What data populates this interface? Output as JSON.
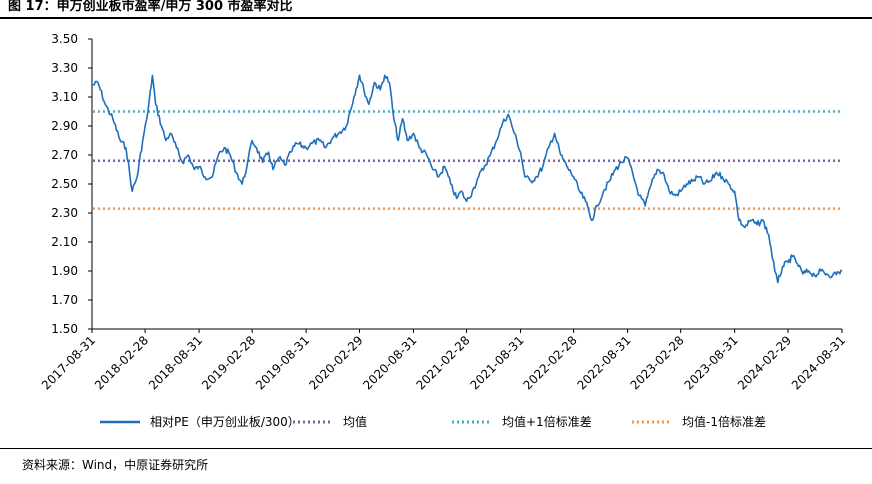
{
  "title": "图 17：申万创业板市盈率/申万 300 市盈率对比",
  "source": "资料来源：Wind，中原证券研究所",
  "chart_data": {
    "type": "line",
    "title": "图 17：申万创业板市盈率/申万 300 市盈率对比",
    "xlabel": "",
    "ylabel": "",
    "ylim": [
      1.5,
      3.5
    ],
    "y_ticks": [
      "1.50",
      "1.70",
      "1.90",
      "2.10",
      "2.30",
      "2.50",
      "2.70",
      "2.90",
      "3.10",
      "3.30",
      "3.50"
    ],
    "x_ticks": [
      "2017-08-31",
      "2018-02-28",
      "2018-08-31",
      "2019-02-28",
      "2019-08-31",
      "2020-02-29",
      "2020-08-31",
      "2021-02-28",
      "2021-08-31",
      "2022-02-28",
      "2022-08-31",
      "2023-02-28",
      "2023-08-31",
      "2024-02-29",
      "2024-08-31"
    ],
    "grid": false,
    "legend_position": "bottom",
    "series": [
      {
        "name": "相对PE（申万创业板/300）",
        "style": "solid",
        "color": "#1f6fba",
        "points": [
          [
            "2017-08-31",
            3.18
          ],
          [
            "2017-09-20",
            3.2
          ],
          [
            "2017-10-15",
            3.05
          ],
          [
            "2017-11-10",
            2.95
          ],
          [
            "2017-12-05",
            2.8
          ],
          [
            "2017-12-25",
            2.75
          ],
          [
            "2018-01-15",
            2.45
          ],
          [
            "2018-02-01",
            2.55
          ],
          [
            "2018-02-20",
            2.8
          ],
          [
            "2018-03-10",
            3.0
          ],
          [
            "2018-03-25",
            3.25
          ],
          [
            "2018-04-05",
            3.05
          ],
          [
            "2018-04-25",
            2.9
          ],
          [
            "2018-05-10",
            2.8
          ],
          [
            "2018-05-25",
            2.85
          ],
          [
            "2018-06-15",
            2.75
          ],
          [
            "2018-07-05",
            2.65
          ],
          [
            "2018-07-25",
            2.7
          ],
          [
            "2018-08-15",
            2.6
          ],
          [
            "2018-08-31",
            2.62
          ],
          [
            "2018-09-20",
            2.55
          ],
          [
            "2018-10-15",
            2.55
          ],
          [
            "2018-11-05",
            2.7
          ],
          [
            "2018-11-25",
            2.75
          ],
          [
            "2018-12-15",
            2.7
          ],
          [
            "2019-01-05",
            2.58
          ],
          [
            "2019-01-25",
            2.5
          ],
          [
            "2019-02-10",
            2.62
          ],
          [
            "2019-02-28",
            2.8
          ],
          [
            "2019-03-15",
            2.75
          ],
          [
            "2019-04-05",
            2.65
          ],
          [
            "2019-04-25",
            2.72
          ],
          [
            "2019-05-10",
            2.6
          ],
          [
            "2019-05-30",
            2.68
          ],
          [
            "2019-06-20",
            2.63
          ],
          [
            "2019-07-10",
            2.72
          ],
          [
            "2019-07-30",
            2.78
          ],
          [
            "2019-08-31",
            2.75
          ],
          [
            "2019-09-20",
            2.78
          ],
          [
            "2019-10-15",
            2.8
          ],
          [
            "2019-11-05",
            2.75
          ],
          [
            "2019-11-30",
            2.82
          ],
          [
            "2019-12-20",
            2.85
          ],
          [
            "2020-01-15",
            2.9
          ],
          [
            "2020-02-10",
            3.1
          ],
          [
            "2020-02-29",
            3.25
          ],
          [
            "2020-03-15",
            3.15
          ],
          [
            "2020-04-01",
            3.05
          ],
          [
            "2020-04-20",
            3.2
          ],
          [
            "2020-05-10",
            3.15
          ],
          [
            "2020-05-25",
            3.25
          ],
          [
            "2020-06-10",
            3.2
          ],
          [
            "2020-06-25",
            2.95
          ],
          [
            "2020-07-10",
            2.8
          ],
          [
            "2020-07-25",
            2.95
          ],
          [
            "2020-08-10",
            2.8
          ],
          [
            "2020-08-31",
            2.85
          ],
          [
            "2020-09-20",
            2.75
          ],
          [
            "2020-10-15",
            2.7
          ],
          [
            "2020-11-05",
            2.6
          ],
          [
            "2020-11-25",
            2.55
          ],
          [
            "2020-12-15",
            2.62
          ],
          [
            "2021-01-05",
            2.5
          ],
          [
            "2021-01-25",
            2.4
          ],
          [
            "2021-02-10",
            2.45
          ],
          [
            "2021-02-28",
            2.38
          ],
          [
            "2021-03-20",
            2.45
          ],
          [
            "2021-04-10",
            2.55
          ],
          [
            "2021-04-30",
            2.62
          ],
          [
            "2021-05-20",
            2.7
          ],
          [
            "2021-06-10",
            2.8
          ],
          [
            "2021-07-01",
            2.92
          ],
          [
            "2021-07-20",
            2.98
          ],
          [
            "2021-08-10",
            2.85
          ],
          [
            "2021-08-31",
            2.72
          ],
          [
            "2021-09-15",
            2.55
          ],
          [
            "2021-10-05",
            2.52
          ],
          [
            "2021-10-25",
            2.55
          ],
          [
            "2021-11-15",
            2.62
          ],
          [
            "2021-12-05",
            2.75
          ],
          [
            "2021-12-25",
            2.85
          ],
          [
            "2022-01-15",
            2.7
          ],
          [
            "2022-02-05",
            2.62
          ],
          [
            "2022-02-28",
            2.55
          ],
          [
            "2022-03-20",
            2.45
          ],
          [
            "2022-04-10",
            2.38
          ],
          [
            "2022-04-30",
            2.25
          ],
          [
            "2022-05-20",
            2.35
          ],
          [
            "2022-06-10",
            2.45
          ],
          [
            "2022-06-30",
            2.52
          ],
          [
            "2022-07-20",
            2.6
          ],
          [
            "2022-08-10",
            2.65
          ],
          [
            "2022-08-31",
            2.68
          ],
          [
            "2022-09-20",
            2.55
          ],
          [
            "2022-10-10",
            2.42
          ],
          [
            "2022-10-30",
            2.35
          ],
          [
            "2022-11-20",
            2.5
          ],
          [
            "2022-12-10",
            2.6
          ],
          [
            "2022-12-30",
            2.58
          ],
          [
            "2023-01-20",
            2.45
          ],
          [
            "2023-02-10",
            2.42
          ],
          [
            "2023-02-28",
            2.45
          ],
          [
            "2023-03-20",
            2.5
          ],
          [
            "2023-04-10",
            2.52
          ],
          [
            "2023-04-30",
            2.55
          ],
          [
            "2023-05-20",
            2.5
          ],
          [
            "2023-06-10",
            2.52
          ],
          [
            "2023-06-30",
            2.58
          ],
          [
            "2023-07-20",
            2.55
          ],
          [
            "2023-08-10",
            2.5
          ],
          [
            "2023-08-31",
            2.45
          ],
          [
            "2023-09-15",
            2.25
          ],
          [
            "2023-10-05",
            2.2
          ],
          [
            "2023-10-25",
            2.25
          ],
          [
            "2023-11-15",
            2.22
          ],
          [
            "2023-12-05",
            2.25
          ],
          [
            "2023-12-25",
            2.15
          ],
          [
            "2024-01-15",
            1.9
          ],
          [
            "2024-01-25",
            1.82
          ],
          [
            "2024-02-10",
            1.93
          ],
          [
            "2024-02-29",
            1.96
          ],
          [
            "2024-03-15",
            2.0
          ],
          [
            "2024-04-01",
            1.95
          ],
          [
            "2024-04-20",
            1.88
          ],
          [
            "2024-05-10",
            1.9
          ],
          [
            "2024-05-30",
            1.87
          ],
          [
            "2024-06-20",
            1.9
          ],
          [
            "2024-07-10",
            1.88
          ],
          [
            "2024-07-30",
            1.87
          ],
          [
            "2024-08-20",
            1.89
          ],
          [
            "2024-08-31",
            1.9
          ]
        ]
      },
      {
        "name": "均值",
        "style": "dotted",
        "color": "#7b62a3",
        "value": 2.66
      },
      {
        "name": "均值+1倍标准差",
        "style": "dotted",
        "color": "#4bacc6",
        "value": 3.0
      },
      {
        "name": "均值-1倍标准差",
        "style": "dotted",
        "color": "#f79646",
        "value": 2.33
      }
    ]
  }
}
